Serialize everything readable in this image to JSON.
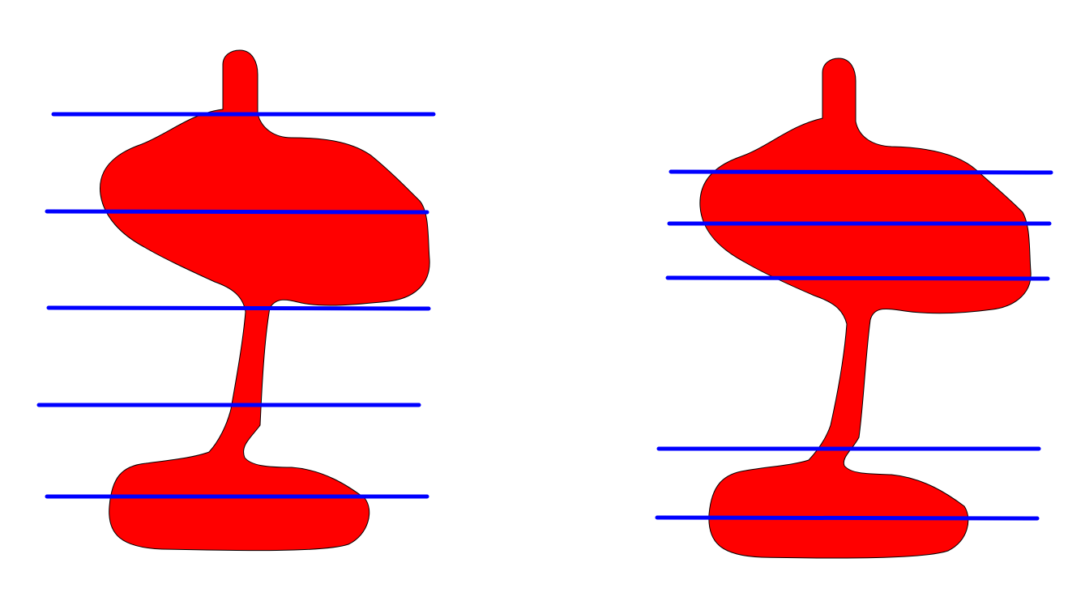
{
  "colors": {
    "background": "#ffffff",
    "shape_fill": "#ff0000",
    "shape_stroke": "#000000",
    "line": "#0000ff"
  },
  "figures": [
    {
      "name": "left-figure",
      "shape": "red-stacked-blob",
      "horizontal_line_count": 5
    },
    {
      "name": "right-figure",
      "shape": "red-stacked-blob",
      "horizontal_line_count": 5
    }
  ]
}
